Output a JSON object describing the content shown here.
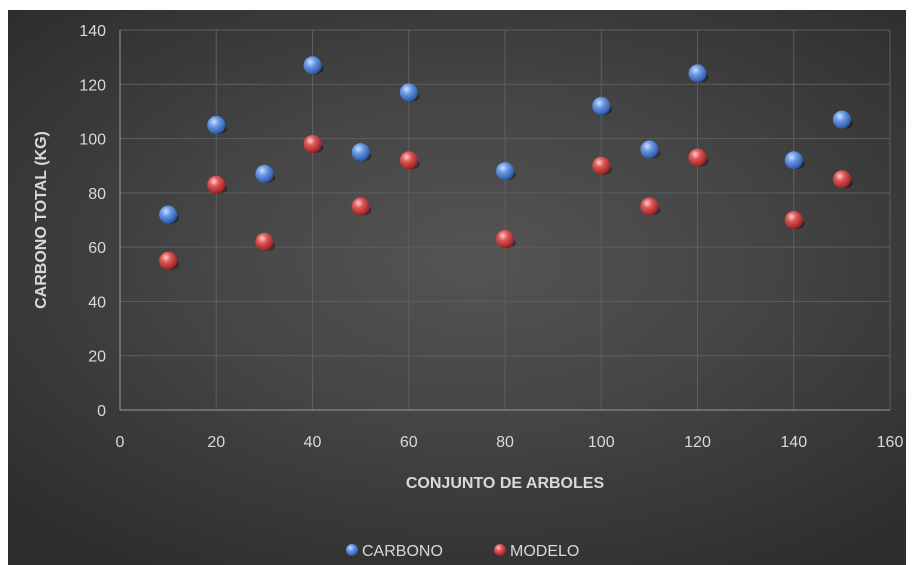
{
  "chart_data": {
    "type": "scatter",
    "title": "",
    "xlabel": "CONJUNTO DE ARBOLES",
    "ylabel": "CARBONO TOTAL (KG)",
    "xlim": [
      0,
      160
    ],
    "ylim": [
      0,
      140
    ],
    "x_ticks": [
      "0",
      "20",
      "40",
      "60",
      "80",
      "100",
      "120",
      "140",
      "160"
    ],
    "y_ticks": [
      "0",
      "20",
      "40",
      "60",
      "80",
      "100",
      "120",
      "140"
    ],
    "grid": "vertical and horizontal major gridlines",
    "legend_position": "bottom",
    "series": [
      {
        "name": "CARBONO",
        "color": "#4a7fd4",
        "points": [
          {
            "x": 10,
            "y": 72
          },
          {
            "x": 20,
            "y": 105
          },
          {
            "x": 30,
            "y": 87
          },
          {
            "x": 40,
            "y": 127
          },
          {
            "x": 50,
            "y": 95
          },
          {
            "x": 60,
            "y": 117
          },
          {
            "x": 80,
            "y": 88
          },
          {
            "x": 100,
            "y": 112
          },
          {
            "x": 110,
            "y": 96
          },
          {
            "x": 120,
            "y": 124
          },
          {
            "x": 140,
            "y": 92
          },
          {
            "x": 150,
            "y": 107
          }
        ]
      },
      {
        "name": "MODELO",
        "color": "#d23b3b",
        "points": [
          {
            "x": 10,
            "y": 55
          },
          {
            "x": 20,
            "y": 83
          },
          {
            "x": 30,
            "y": 62
          },
          {
            "x": 40,
            "y": 98
          },
          {
            "x": 50,
            "y": 75
          },
          {
            "x": 60,
            "y": 92
          },
          {
            "x": 80,
            "y": 63
          },
          {
            "x": 100,
            "y": 90
          },
          {
            "x": 110,
            "y": 75
          },
          {
            "x": 120,
            "y": 93
          },
          {
            "x": 140,
            "y": 70
          },
          {
            "x": 150,
            "y": 85
          }
        ]
      }
    ]
  }
}
